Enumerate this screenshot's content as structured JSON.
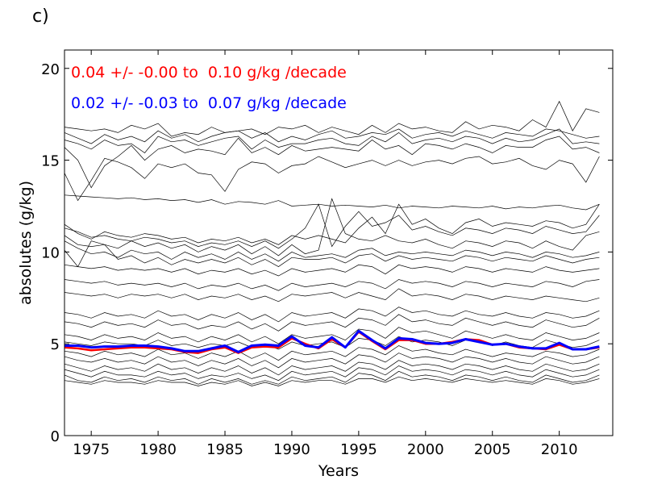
{
  "panel_label": "c)",
  "chart_data": {
    "type": "line",
    "xlabel": "Years",
    "ylabel": "absolutes (g/kg)",
    "xlim": [
      1973,
      2014
    ],
    "ylim": [
      0,
      21
    ],
    "x_ticks": [
      1975,
      1980,
      1985,
      1990,
      1995,
      2000,
      2005,
      2010
    ],
    "y_ticks": [
      0,
      5,
      10,
      15,
      20
    ],
    "grid": false,
    "annotations": [
      {
        "text": "0.04 +/- -0.00 to  0.10 g/kg /decade",
        "color": "#ff0000"
      },
      {
        "text": "0.02 +/- -0.03 to  0.07 g/kg /decade",
        "color": "#0000ff"
      }
    ],
    "x": [
      1973,
      1974,
      1975,
      1976,
      1977,
      1978,
      1979,
      1980,
      1981,
      1982,
      1983,
      1984,
      1985,
      1986,
      1987,
      1988,
      1989,
      1990,
      1991,
      1992,
      1993,
      1994,
      1995,
      1996,
      1997,
      1998,
      1999,
      2000,
      2001,
      2002,
      2003,
      2004,
      2005,
      2006,
      2007,
      2008,
      2009,
      2010,
      2011,
      2012,
      2013
    ],
    "highlight_series": [
      {
        "color": "#ff0000",
        "values": [
          4.8,
          4.75,
          4.65,
          4.7,
          4.75,
          4.8,
          4.8,
          4.75,
          4.7,
          4.55,
          4.5,
          4.7,
          4.8,
          4.5,
          4.8,
          4.85,
          4.8,
          5.3,
          5.0,
          4.75,
          5.25,
          4.8,
          5.65,
          5.15,
          4.7,
          5.2,
          5.2,
          5.0,
          5.0,
          5.1,
          5.25,
          5.2,
          4.95,
          5.0,
          4.8,
          4.75,
          4.7,
          4.95,
          4.7,
          4.7,
          4.8
        ]
      },
      {
        "color": "#0000ff",
        "values": [
          4.9,
          4.9,
          4.8,
          4.85,
          4.85,
          4.9,
          4.9,
          4.85,
          4.75,
          4.6,
          4.6,
          4.75,
          4.9,
          4.55,
          4.9,
          4.95,
          4.9,
          5.4,
          4.9,
          4.8,
          5.35,
          4.8,
          5.7,
          5.2,
          4.75,
          5.3,
          5.25,
          5.05,
          5.0,
          5.05,
          5.25,
          5.1,
          4.95,
          5.0,
          4.85,
          4.75,
          4.75,
          5.05,
          4.7,
          4.7,
          4.85
        ]
      }
    ],
    "series": [
      {
        "values": [
          16.8,
          16.7,
          16.6,
          16.7,
          16.5,
          16.9,
          16.7,
          17.0,
          16.3,
          16.5,
          16.4,
          16.8,
          16.5,
          16.6,
          16.7,
          16.4,
          16.8,
          16.7,
          16.9,
          16.5,
          16.8,
          16.6,
          16.4,
          16.9,
          16.5,
          17.0,
          16.7,
          16.8,
          16.6,
          16.5,
          17.1,
          16.7,
          16.9,
          16.8,
          16.6,
          17.2,
          16.8,
          18.2,
          16.6,
          17.8,
          17.6
        ]
      },
      {
        "values": [
          16.5,
          16.2,
          15.9,
          16.4,
          16.1,
          16.3,
          16.0,
          16.6,
          16.2,
          16.4,
          16.0,
          16.3,
          16.5,
          16.6,
          16.2,
          16.5,
          16.0,
          16.3,
          16.1,
          16.4,
          16.6,
          16.2,
          16.3,
          16.5,
          16.4,
          16.7,
          16.2,
          16.4,
          16.5,
          16.3,
          16.6,
          16.4,
          16.2,
          16.5,
          16.4,
          16.3,
          16.7,
          16.6,
          16.4,
          16.2,
          16.3
        ]
      },
      {
        "values": [
          16.1,
          15.9,
          15.6,
          16.1,
          15.8,
          15.9,
          15.4,
          16.3,
          16.0,
          16.1,
          15.8,
          16.0,
          16.2,
          16.3,
          15.6,
          16.1,
          15.7,
          15.9,
          15.9,
          16.1,
          16.2,
          15.9,
          15.8,
          16.3,
          16.0,
          16.5,
          15.9,
          16.1,
          16.2,
          16.0,
          16.3,
          16.2,
          15.9,
          16.2,
          16.0,
          16.1,
          16.4,
          16.7,
          15.9,
          16.0,
          15.9
        ]
      },
      {
        "values": [
          15.7,
          15.0,
          13.5,
          14.7,
          15.2,
          15.8,
          15.0,
          15.6,
          15.8,
          15.4,
          15.6,
          15.5,
          15.3,
          16.2,
          15.4,
          15.7,
          15.3,
          15.8,
          15.5,
          15.6,
          15.7,
          15.6,
          15.5,
          16.1,
          15.6,
          15.8,
          15.3,
          15.9,
          15.8,
          15.6,
          15.9,
          15.7,
          15.4,
          15.8,
          15.7,
          15.7,
          16.1,
          16.3,
          15.6,
          15.7,
          15.4
        ]
      },
      {
        "values": [
          14.3,
          12.8,
          13.9,
          15.1,
          14.9,
          14.6,
          14.0,
          14.8,
          14.6,
          14.8,
          14.3,
          14.2,
          13.3,
          14.5,
          14.9,
          14.8,
          14.3,
          14.7,
          14.8,
          15.2,
          14.9,
          14.6,
          14.8,
          15.0,
          14.7,
          15.0,
          14.7,
          14.9,
          15.0,
          14.8,
          15.1,
          15.2,
          14.8,
          14.9,
          15.1,
          14.7,
          14.5,
          15.0,
          14.8,
          13.8,
          15.2
        ]
      },
      {
        "values": [
          13.1,
          13.05,
          13.0,
          12.95,
          12.9,
          12.95,
          12.85,
          12.9,
          12.8,
          12.85,
          12.7,
          12.85,
          12.6,
          12.75,
          12.7,
          12.6,
          12.8,
          12.5,
          12.55,
          12.6,
          12.5,
          12.55,
          12.5,
          12.45,
          12.55,
          12.4,
          12.5,
          12.45,
          12.4,
          12.5,
          12.45,
          12.4,
          12.5,
          12.35,
          12.45,
          12.4,
          12.5,
          12.55,
          12.4,
          12.3,
          12.6
        ]
      },
      {
        "values": [
          11.5,
          11.0,
          10.7,
          11.1,
          10.9,
          10.8,
          11.0,
          10.9,
          10.7,
          10.8,
          10.5,
          10.7,
          10.6,
          10.8,
          10.5,
          10.7,
          10.4,
          10.9,
          10.7,
          10.9,
          10.7,
          10.5,
          11.3,
          11.9,
          11.0,
          12.6,
          11.5,
          11.8,
          11.3,
          11.0,
          11.6,
          11.8,
          11.4,
          11.6,
          11.5,
          11.4,
          11.7,
          11.6,
          11.3,
          11.5,
          12.6
        ]
      },
      {
        "values": [
          11.3,
          11.1,
          10.8,
          10.9,
          10.7,
          10.6,
          10.8,
          10.7,
          10.5,
          10.6,
          10.3,
          10.5,
          10.4,
          10.6,
          10.3,
          10.6,
          10.2,
          10.7,
          11.3,
          12.6,
          10.3,
          11.4,
          12.2,
          11.4,
          11.6,
          12.0,
          11.2,
          11.4,
          11.1,
          10.9,
          11.3,
          11.2,
          11.0,
          11.3,
          11.2,
          11.0,
          11.4,
          11.2,
          11.0,
          11.1,
          12.0
        ]
      },
      {
        "values": [
          10.9,
          10.4,
          10.3,
          10.4,
          10.2,
          10.6,
          10.3,
          10.5,
          10.2,
          10.4,
          10.0,
          10.3,
          10.1,
          10.4,
          9.9,
          10.3,
          9.8,
          10.4,
          9.9,
          10.1,
          12.9,
          11.0,
          10.7,
          10.6,
          10.9,
          10.6,
          10.5,
          10.7,
          10.4,
          10.2,
          10.6,
          10.5,
          10.3,
          10.6,
          10.5,
          10.2,
          10.6,
          10.3,
          10.1,
          10.9,
          11.1
        ]
      },
      {
        "values": [
          10.6,
          10.2,
          9.9,
          10.0,
          9.7,
          10.1,
          9.9,
          10.0,
          9.6,
          10.0,
          9.7,
          9.9,
          9.6,
          10.0,
          9.6,
          9.9,
          9.5,
          10.0,
          9.7,
          9.8,
          9.9,
          9.7,
          10.1,
          10.2,
          9.8,
          10.0,
          9.9,
          10.0,
          9.9,
          9.8,
          10.1,
          10.0,
          9.8,
          10.0,
          9.9,
          9.7,
          10.0,
          9.9,
          9.7,
          9.8,
          10.0
        ]
      },
      {
        "values": [
          10.1,
          9.2,
          10.6,
          10.4,
          9.6,
          9.8,
          9.4,
          9.7,
          9.3,
          9.6,
          9.4,
          9.6,
          9.4,
          9.7,
          9.3,
          9.6,
          9.2,
          9.7,
          9.6,
          9.6,
          9.7,
          9.4,
          9.8,
          9.9,
          9.5,
          9.8,
          9.6,
          9.7,
          9.6,
          9.5,
          9.8,
          9.7,
          9.5,
          9.7,
          9.6,
          9.5,
          9.8,
          9.6,
          9.4,
          9.6,
          9.7
        ]
      },
      {
        "values": [
          9.3,
          9.2,
          9.1,
          9.2,
          9.0,
          9.1,
          9.0,
          9.1,
          8.9,
          9.1,
          8.8,
          9.0,
          8.9,
          9.1,
          8.8,
          9.0,
          8.7,
          9.1,
          8.9,
          9.0,
          9.1,
          8.9,
          9.3,
          9.2,
          8.8,
          9.3,
          9.1,
          9.2,
          9.1,
          8.9,
          9.2,
          9.1,
          8.9,
          9.1,
          9.0,
          8.9,
          9.2,
          9.0,
          8.9,
          9.0,
          9.1
        ]
      },
      {
        "values": [
          8.5,
          8.4,
          8.3,
          8.4,
          8.2,
          8.3,
          8.2,
          8.3,
          8.1,
          8.3,
          8.0,
          8.2,
          8.1,
          8.3,
          8.0,
          8.2,
          7.9,
          8.3,
          8.1,
          8.2,
          8.3,
          8.1,
          8.4,
          8.3,
          8.0,
          8.5,
          8.3,
          8.4,
          8.3,
          8.1,
          8.4,
          8.3,
          8.1,
          8.3,
          8.2,
          8.1,
          8.4,
          8.3,
          8.1,
          8.4,
          8.5
        ]
      },
      {
        "values": [
          7.8,
          7.7,
          7.6,
          7.7,
          7.5,
          7.7,
          7.6,
          7.7,
          7.5,
          7.7,
          7.4,
          7.6,
          7.5,
          7.7,
          7.4,
          7.6,
          7.3,
          7.7,
          7.6,
          7.7,
          7.8,
          7.5,
          7.8,
          7.6,
          7.4,
          8.0,
          7.6,
          7.7,
          7.6,
          7.4,
          7.7,
          7.6,
          7.4,
          7.6,
          7.5,
          7.4,
          7.6,
          7.5,
          7.4,
          7.3,
          7.5
        ]
      },
      {
        "values": [
          6.7,
          6.6,
          6.4,
          6.7,
          6.5,
          6.6,
          6.4,
          6.8,
          6.5,
          6.6,
          6.3,
          6.6,
          6.4,
          6.7,
          6.3,
          6.6,
          6.2,
          6.7,
          6.5,
          6.6,
          6.7,
          6.4,
          6.9,
          6.8,
          6.5,
          7.0,
          6.7,
          6.8,
          6.6,
          6.5,
          6.8,
          6.6,
          6.5,
          6.7,
          6.5,
          6.4,
          6.7,
          6.6,
          6.4,
          6.5,
          6.8
        ]
      },
      {
        "values": [
          6.2,
          6.1,
          5.9,
          6.2,
          6.0,
          6.1,
          5.9,
          6.3,
          6.0,
          6.1,
          5.8,
          6.0,
          5.9,
          6.2,
          5.8,
          6.1,
          5.7,
          6.2,
          6.0,
          6.1,
          6.2,
          5.9,
          6.4,
          6.3,
          6.0,
          6.6,
          6.2,
          6.3,
          6.1,
          6.0,
          6.4,
          6.2,
          6.0,
          6.2,
          6.0,
          5.9,
          6.3,
          6.1,
          5.9,
          6.0,
          6.4
        ]
      },
      {
        "values": [
          5.5,
          5.4,
          5.2,
          5.5,
          5.3,
          5.4,
          5.2,
          5.6,
          5.3,
          5.4,
          5.1,
          5.4,
          5.2,
          5.5,
          5.1,
          5.4,
          5.0,
          5.5,
          5.3,
          5.4,
          5.5,
          5.2,
          5.8,
          5.7,
          5.3,
          5.9,
          5.6,
          5.7,
          5.5,
          5.3,
          5.7,
          5.5,
          5.3,
          5.5,
          5.3,
          5.2,
          5.6,
          5.4,
          5.2,
          5.3,
          5.6
        ]
      },
      {
        "values": [
          5.1,
          5.0,
          4.9,
          5.1,
          5.0,
          5.0,
          4.9,
          5.2,
          4.9,
          5.0,
          4.8,
          5.0,
          4.9,
          5.1,
          4.8,
          5.0,
          4.7,
          5.1,
          4.9,
          5.0,
          5.1,
          4.8,
          5.3,
          5.2,
          4.9,
          5.4,
          5.1,
          5.2,
          5.1,
          4.9,
          5.2,
          5.1,
          4.9,
          5.1,
          4.9,
          4.8,
          5.2,
          5.0,
          4.8,
          4.9,
          5.2
        ]
      },
      {
        "values": [
          4.6,
          4.5,
          4.3,
          4.6,
          4.4,
          4.5,
          4.3,
          4.7,
          4.4,
          4.5,
          4.2,
          4.5,
          4.3,
          4.6,
          4.2,
          4.5,
          4.1,
          4.6,
          4.4,
          4.5,
          4.6,
          4.3,
          4.8,
          4.7,
          4.4,
          4.9,
          4.6,
          4.7,
          4.5,
          4.4,
          4.7,
          4.5,
          4.3,
          4.5,
          4.4,
          4.3,
          4.6,
          4.5,
          4.3,
          4.4,
          4.7
        ]
      },
      {
        "values": [
          4.3,
          4.1,
          4.0,
          4.2,
          4.0,
          4.1,
          3.9,
          4.3,
          4.0,
          4.1,
          3.8,
          4.1,
          3.9,
          4.2,
          3.8,
          4.1,
          3.7,
          4.2,
          4.0,
          4.1,
          4.2,
          3.9,
          4.4,
          4.3,
          4.0,
          4.5,
          4.2,
          4.3,
          4.2,
          4.0,
          4.3,
          4.2,
          4.0,
          4.2,
          4.0,
          3.9,
          4.3,
          4.1,
          3.9,
          4.0,
          4.3
        ]
      },
      {
        "values": [
          3.9,
          3.7,
          3.5,
          3.8,
          3.6,
          3.7,
          3.5,
          3.9,
          3.6,
          3.7,
          3.4,
          3.7,
          3.5,
          3.8,
          3.4,
          3.7,
          3.3,
          3.8,
          3.6,
          3.7,
          3.8,
          3.5,
          4.0,
          3.9,
          3.6,
          4.1,
          3.8,
          3.9,
          3.8,
          3.6,
          3.9,
          3.8,
          3.6,
          3.8,
          3.6,
          3.5,
          3.9,
          3.7,
          3.5,
          3.6,
          3.9
        ]
      },
      {
        "values": [
          3.6,
          3.4,
          3.2,
          3.5,
          3.3,
          3.3,
          3.2,
          3.5,
          3.3,
          3.4,
          3.1,
          3.3,
          3.2,
          3.4,
          3.1,
          3.3,
          3.0,
          3.5,
          3.3,
          3.4,
          3.5,
          3.2,
          3.7,
          3.6,
          3.3,
          3.8,
          3.5,
          3.6,
          3.5,
          3.3,
          3.6,
          3.5,
          3.3,
          3.5,
          3.3,
          3.2,
          3.6,
          3.4,
          3.2,
          3.3,
          3.6
        ]
      },
      {
        "values": [
          3.3,
          3.0,
          2.9,
          3.2,
          3.0,
          3.1,
          2.9,
          3.2,
          3.0,
          3.1,
          2.8,
          3.1,
          2.9,
          3.1,
          2.8,
          3.0,
          2.8,
          3.2,
          3.0,
          3.1,
          3.2,
          2.9,
          3.4,
          3.3,
          3.0,
          3.5,
          3.2,
          3.3,
          3.2,
          3.0,
          3.3,
          3.2,
          3.0,
          3.2,
          3.0,
          2.9,
          3.3,
          3.1,
          2.9,
          3.0,
          3.3
        ]
      },
      {
        "values": [
          3.0,
          2.9,
          2.8,
          3.0,
          2.9,
          2.9,
          2.8,
          3.0,
          2.9,
          2.9,
          2.7,
          2.9,
          2.8,
          3.0,
          2.7,
          2.9,
          2.7,
          3.0,
          2.9,
          3.0,
          3.0,
          2.8,
          3.1,
          3.1,
          2.9,
          3.2,
          3.0,
          3.1,
          3.0,
          2.9,
          3.1,
          3.0,
          2.9,
          3.0,
          2.9,
          2.8,
          3.1,
          3.0,
          2.8,
          2.9,
          3.1
        ]
      }
    ]
  }
}
